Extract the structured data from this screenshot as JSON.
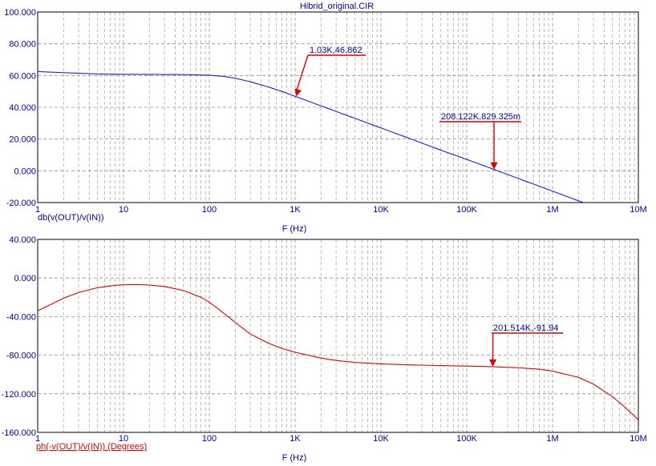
{
  "title": "Hibrid_original.CIR",
  "colors": {
    "magnitude_trace": "#2020d0",
    "phase_trace": "#e00000",
    "marker": "#e00000",
    "axis_text": "#0000a0",
    "grid": "#909090",
    "frame": "#000000"
  },
  "chart_data": [
    {
      "type": "line",
      "xscale": "log",
      "xlim": [
        1,
        10000000
      ],
      "ylim": [
        -20,
        100
      ],
      "grid": true,
      "xlabel": "F (Hz)",
      "ylabel": "db(v(OUT)/v(IN))",
      "x_ticks": [
        "1",
        "10",
        "100",
        "1K",
        "10K",
        "100K",
        "1M",
        "10M"
      ],
      "y_ticks": [
        "100.000",
        "80.000",
        "60.000",
        "40.000",
        "20.000",
        "0.000",
        "-20.000"
      ],
      "series": [
        {
          "x": [
            1,
            2,
            5,
            10,
            20,
            50,
            100,
            150,
            200,
            300,
            500,
            700,
            1000,
            1500,
            2000,
            3000,
            5000,
            10000,
            20000,
            50000,
            100000,
            208122,
            500000,
            1000000,
            2000000,
            2300000
          ],
          "y": [
            62.5,
            61.8,
            61.0,
            60.8,
            60.7,
            60.6,
            60.2,
            59.4,
            58.3,
            56.1,
            52.6,
            50.0,
            46.9,
            43.4,
            40.9,
            37.4,
            33.0,
            27.0,
            21.0,
            13.0,
            7.2,
            0.83,
            -6.8,
            -12.8,
            -18.9,
            -20.0
          ]
        }
      ],
      "annotations": [
        {
          "label": "1.03K,46.862",
          "x": 1030,
          "y": 46.862
        },
        {
          "label": "208.122K,829.325m",
          "x": 208122,
          "y": 0.829
        }
      ]
    },
    {
      "type": "line",
      "xscale": "log",
      "xlim": [
        1,
        10000000
      ],
      "ylim": [
        -160,
        40
      ],
      "grid": true,
      "xlabel": "F (Hz)",
      "ylabel": "ph(-v(OUT)/v(IN)) (Degrees)",
      "x_ticks": [
        "1",
        "10",
        "100",
        "1K",
        "10K",
        "100K",
        "1M",
        "10M"
      ],
      "y_ticks": [
        "40.000",
        "0.000",
        "-40.000",
        "-80.000",
        "-120.000",
        "-160.000"
      ],
      "series": [
        {
          "x": [
            1,
            2,
            3,
            5,
            8,
            10,
            15,
            20,
            30,
            50,
            80,
            100,
            150,
            200,
            300,
            500,
            700,
            1000,
            2000,
            3000,
            5000,
            10000,
            20000,
            50000,
            100000,
            201514,
            400000,
            700000,
            1000000,
            2000000,
            3000000,
            5000000,
            7000000,
            10000000
          ],
          "y": [
            -34,
            -21,
            -15,
            -10,
            -7.6,
            -7.0,
            -6.9,
            -7.3,
            -8.8,
            -13,
            -20,
            -25,
            -37,
            -46,
            -58,
            -68,
            -73,
            -77,
            -83,
            -85.5,
            -87.5,
            -89,
            -90,
            -90.8,
            -91.3,
            -91.94,
            -93,
            -94.5,
            -96.5,
            -103,
            -110,
            -123,
            -134,
            -147
          ]
        }
      ],
      "annotations": [
        {
          "label": "201.514K,-91.94",
          "x": 201514,
          "y": -91.94
        }
      ]
    }
  ]
}
